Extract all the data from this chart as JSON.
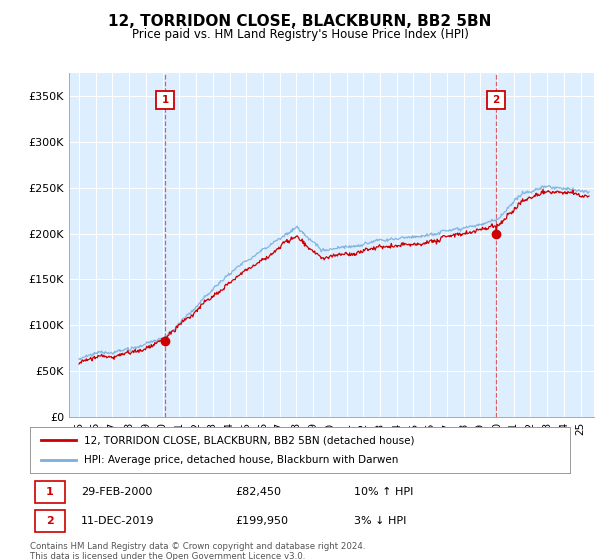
{
  "title": "12, TORRIDON CLOSE, BLACKBURN, BB2 5BN",
  "subtitle": "Price paid vs. HM Land Registry's House Price Index (HPI)",
  "legend_line1": "12, TORRIDON CLOSE, BLACKBURN, BB2 5BN (detached house)",
  "legend_line2": "HPI: Average price, detached house, Blackburn with Darwen",
  "sale1_date": "29-FEB-2000",
  "sale1_price": 82450,
  "sale1_hpi": "10% ↑ HPI",
  "sale2_date": "11-DEC-2019",
  "sale2_price": 199950,
  "sale2_hpi": "3% ↓ HPI",
  "footer": "Contains HM Land Registry data © Crown copyright and database right 2024.\nThis data is licensed under the Open Government Licence v3.0.",
  "hpi_color": "#7aafde",
  "price_color": "#cc0000",
  "sale_vline_color": "#dd4444",
  "background_color": "#ddeeff",
  "ylim": [
    0,
    375000
  ],
  "yticks": [
    0,
    50000,
    100000,
    150000,
    200000,
    250000,
    300000,
    350000
  ],
  "start_year": 1995,
  "end_year": 2025,
  "t_sale1": 2000.16,
  "t_sale2": 2019.94
}
